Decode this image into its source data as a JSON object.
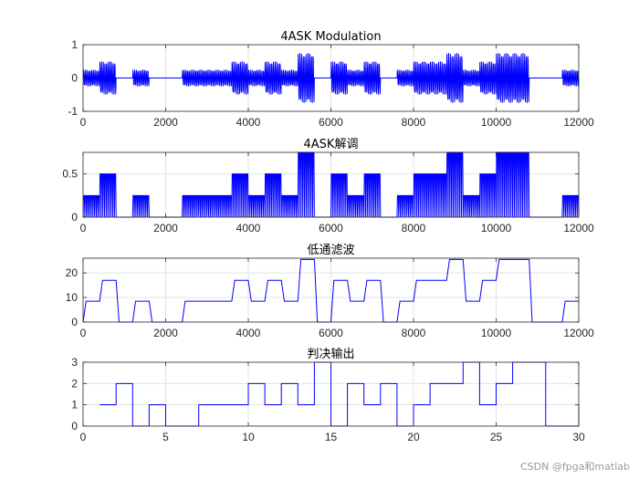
{
  "watermark": "CSDN @fpga和matlab",
  "colors": {
    "series": "#0000ff",
    "axis": "#262626",
    "grid": "#e3e3e3",
    "text": "#262626"
  },
  "chart_data": [
    {
      "type": "line",
      "title": "4ASK Modulation",
      "xlabel": "",
      "ylabel": "",
      "xlim": [
        0,
        12000
      ],
      "ylim": [
        -1,
        1
      ],
      "xticks": [
        0,
        2000,
        4000,
        6000,
        8000,
        10000,
        12000
      ],
      "xtick_labels": [
        "0",
        "2000",
        "4000",
        "6000",
        "8000",
        "10000",
        "12000"
      ],
      "yticks": [
        -1,
        0,
        1
      ],
      "ytick_labels": [
        "-1",
        "0",
        "1"
      ],
      "grid": true,
      "style": "modulated",
      "carrier_cycles_per_symbol": 10,
      "symbol_samples": 400,
      "amplitudes_per_symbol": [
        0.25,
        0.5,
        0,
        0.25,
        0,
        0,
        0.25,
        0.25,
        0.25,
        0.5,
        0.25,
        0.5,
        0.25,
        0.75,
        0,
        0.5,
        0.25,
        0.5,
        0,
        0.25,
        0.5,
        0.5,
        0.75,
        0.25,
        0.5,
        0.75,
        0.75,
        0,
        0,
        0.25
      ]
    },
    {
      "type": "line",
      "title": "4ASK解调",
      "xlabel": "",
      "ylabel": "",
      "xlim": [
        0,
        12000
      ],
      "ylim": [
        0,
        0.75
      ],
      "xticks": [
        0,
        2000,
        4000,
        6000,
        8000,
        10000,
        12000
      ],
      "xtick_labels": [
        "0",
        "2000",
        "4000",
        "6000",
        "8000",
        "10000",
        "12000"
      ],
      "yticks": [
        0,
        0.5
      ],
      "ytick_labels": [
        "0",
        "0.5"
      ],
      "grid": true,
      "style": "rectified",
      "symbol_samples": 400,
      "amplitudes_per_symbol": [
        0.25,
        0.5,
        0,
        0.25,
        0,
        0,
        0.25,
        0.25,
        0.25,
        0.5,
        0.25,
        0.5,
        0.25,
        0.75,
        0,
        0.5,
        0.25,
        0.5,
        0,
        0.25,
        0.5,
        0.5,
        0.75,
        0.25,
        0.5,
        0.75,
        0.75,
        0,
        0,
        0.25
      ]
    },
    {
      "type": "line",
      "title": "低通滤波",
      "xlabel": "",
      "ylabel": "",
      "xlim": [
        0,
        12000
      ],
      "ylim": [
        0,
        26
      ],
      "xticks": [
        0,
        2000,
        4000,
        6000,
        8000,
        10000,
        12000
      ],
      "xtick_labels": [
        "0",
        "2000",
        "4000",
        "6000",
        "8000",
        "10000",
        "12000"
      ],
      "yticks": [
        0,
        10,
        20
      ],
      "ytick_labels": [
        "0",
        "10",
        "20"
      ],
      "grid": true,
      "style": "smoothed",
      "symbol_samples": 400,
      "level_scale": 34,
      "amplitudes_per_symbol": [
        0.25,
        0.5,
        0,
        0.25,
        0,
        0,
        0.25,
        0.25,
        0.25,
        0.5,
        0.25,
        0.5,
        0.25,
        0.75,
        0,
        0.5,
        0.25,
        0.5,
        0,
        0.25,
        0.5,
        0.5,
        0.75,
        0.25,
        0.5,
        0.75,
        0.75,
        0,
        0,
        0.25
      ]
    },
    {
      "type": "line",
      "title": "判决输出",
      "xlabel": "",
      "ylabel": "",
      "xlim": [
        0,
        30
      ],
      "ylim": [
        0,
        3
      ],
      "xticks": [
        0,
        5,
        10,
        15,
        20,
        25,
        30
      ],
      "xtick_labels": [
        "0",
        "5",
        "10",
        "15",
        "20",
        "25",
        "30"
      ],
      "yticks": [
        0,
        1,
        2,
        3
      ],
      "ytick_labels": [
        "0",
        "1",
        "2",
        "3"
      ],
      "grid": true,
      "style": "stairs",
      "x_start": 1,
      "values": [
        1,
        2,
        0,
        1,
        0,
        0,
        1,
        1,
        1,
        2,
        1,
        2,
        1,
        3,
        0,
        2,
        1,
        2,
        0,
        1,
        2,
        2,
        3,
        1,
        2,
        3,
        3,
        0,
        0,
        1
      ]
    }
  ]
}
